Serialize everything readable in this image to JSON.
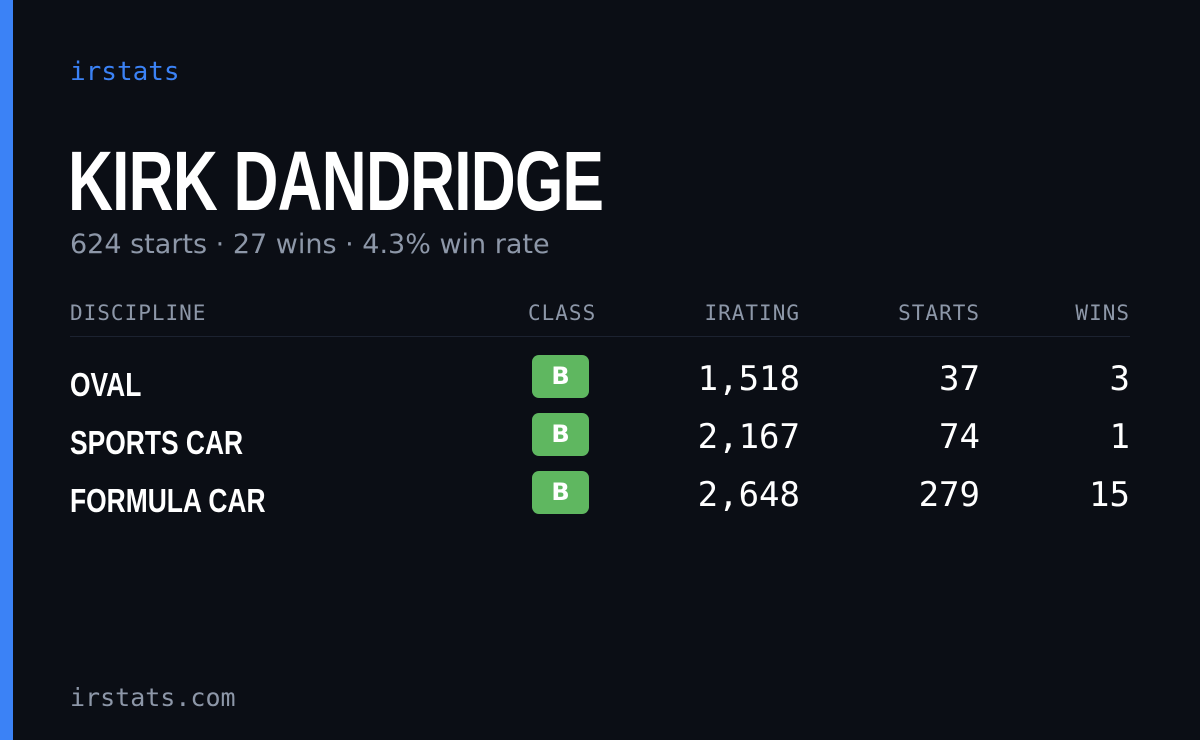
{
  "brand": "irstats",
  "player": {
    "name": "KIRK DANDRIDGE"
  },
  "summary": {
    "starts": "624 starts",
    "wins": "27 wins",
    "win_rate": "4.3% win rate",
    "separator": " · "
  },
  "table": {
    "headers": {
      "discipline": "DISCIPLINE",
      "class": "CLASS",
      "irating": "IRATING",
      "starts": "STARTS",
      "wins": "WINS"
    },
    "rows": [
      {
        "discipline": "OVAL",
        "class": "B",
        "irating": "1,518",
        "starts": "37",
        "wins": "3"
      },
      {
        "discipline": "SPORTS CAR",
        "class": "B",
        "irating": "2,167",
        "starts": "74",
        "wins": "1"
      },
      {
        "discipline": "FORMULA CAR",
        "class": "B",
        "irating": "2,648",
        "starts": "279",
        "wins": "15"
      }
    ]
  },
  "footer": {
    "domain": "irstats.com"
  },
  "colors": {
    "background": "#0b0e15",
    "accent": "#3b82f6",
    "class_b": "#5fb760",
    "muted_text": "#8d97a8"
  }
}
